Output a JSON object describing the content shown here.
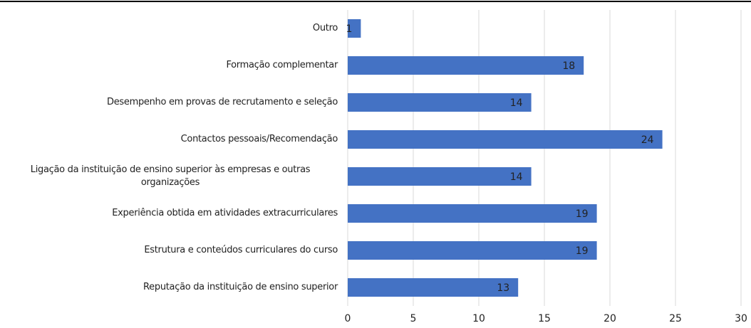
{
  "chart_data": {
    "type": "bar",
    "orientation": "horizontal",
    "categories": [
      "Outro",
      "Formação complementar",
      "Desempenho em provas de recrutamento e seleção",
      "Contactos pessoais/Recomendação",
      "Ligação da instituição de ensino superior às empresas e outras organizações",
      "Experiência obtida em atividades extracurriculares",
      "Estrutura e conteúdos curriculares do curso",
      "Reputação da instituição de ensino superior"
    ],
    "values": [
      1,
      18,
      14,
      24,
      14,
      19,
      19,
      13
    ],
    "color": "#4472c4",
    "xlim": [
      0,
      30
    ],
    "xticks": [
      0,
      5,
      10,
      15,
      20,
      25,
      30
    ],
    "grid": true
  }
}
